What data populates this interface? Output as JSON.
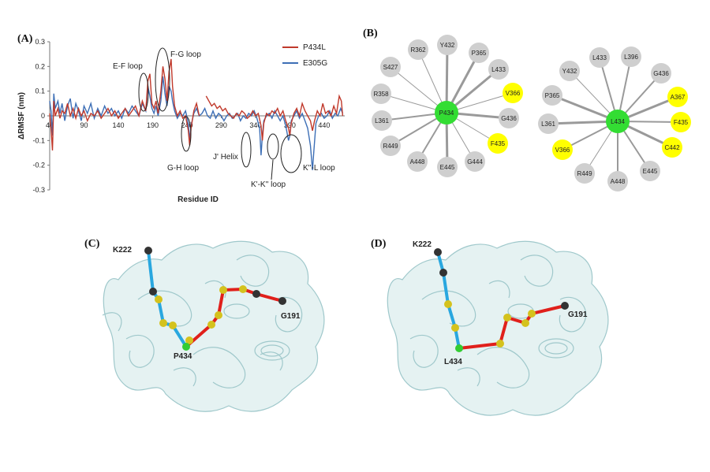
{
  "panels": {
    "a": "(A)",
    "b": "(B)",
    "c": "(C)",
    "d": "(D)"
  },
  "chart_data": {
    "type": "line",
    "title": "",
    "xlabel": "Residue ID",
    "ylabel": "ΔRMSF (nm)",
    "xlim": [
      40,
      470
    ],
    "ylim": [
      -0.3,
      0.3
    ],
    "xticks": [
      40,
      90,
      140,
      190,
      240,
      290,
      340,
      390,
      440
    ],
    "yticks": [
      -0.3,
      -0.2,
      -0.1,
      0,
      0.1,
      0.2,
      0.3
    ],
    "ytick_labels": [
      "-0.3",
      "-0.2",
      "-0.1",
      "0",
      "0.1",
      "0.2",
      "0.3"
    ],
    "legend_position": "top-right",
    "series": [
      {
        "name": "P434L",
        "color": "#c0392b",
        "points": [
          [
            40,
            0.01
          ],
          [
            42,
            -0.05
          ],
          [
            44,
            -0.14
          ],
          [
            46,
            0.06
          ],
          [
            48,
            0.0
          ],
          [
            52,
            0.03
          ],
          [
            55,
            -0.01
          ],
          [
            58,
            0.02
          ],
          [
            62,
            0.01
          ],
          [
            66,
            0.05
          ],
          [
            70,
            0.0
          ],
          [
            74,
            0.03
          ],
          [
            78,
            -0.01
          ],
          [
            82,
            0.03
          ],
          [
            86,
            0.0
          ],
          [
            90,
            0.02
          ],
          [
            95,
            -0.02
          ],
          [
            100,
            0.01
          ],
          [
            105,
            0.0
          ],
          [
            110,
            0.02
          ],
          [
            115,
            -0.01
          ],
          [
            120,
            0.01
          ],
          [
            125,
            0.03
          ],
          [
            130,
            0.0
          ],
          [
            135,
            0.02
          ],
          [
            140,
            -0.01
          ],
          [
            145,
            0.01
          ],
          [
            150,
            0.03
          ],
          [
            155,
            0.0
          ],
          [
            160,
            0.02
          ],
          [
            165,
            0.04
          ],
          [
            170,
            0.0
          ],
          [
            175,
            0.06
          ],
          [
            180,
            0.02
          ],
          [
            183,
            0.14
          ],
          [
            186,
            0.17
          ],
          [
            189,
            0.05
          ],
          [
            192,
            0.03
          ],
          [
            195,
            0.06
          ],
          [
            198,
            0.01
          ],
          [
            202,
            0.1
          ],
          [
            205,
            0.2
          ],
          [
            208,
            0.15
          ],
          [
            211,
            0.06
          ],
          [
            214,
            0.18
          ],
          [
            217,
            0.23
          ],
          [
            219,
            0.12
          ],
          [
            222,
            0.04
          ],
          [
            226,
            0.0
          ],
          [
            230,
            0.02
          ],
          [
            234,
            -0.01
          ],
          [
            238,
            0.0
          ],
          [
            242,
            -0.06
          ],
          [
            244,
            -0.12
          ],
          [
            246,
            -0.05
          ],
          [
            250,
            0.02
          ],
          [
            254,
            0.05
          ],
          [
            258,
            0.0
          ]
        ]
      },
      {
        "name": "P434L",
        "color": "#c0392b",
        "points": [
          [
            268,
            0.08
          ],
          [
            272,
            0.06
          ],
          [
            276,
            0.04
          ],
          [
            280,
            0.05
          ],
          [
            284,
            0.03
          ],
          [
            288,
            0.04
          ],
          [
            292,
            0.02
          ],
          [
            296,
            0.03
          ],
          [
            300,
            0.01
          ],
          [
            304,
            0.0
          ],
          [
            308,
            -0.01
          ],
          [
            312,
            0.01
          ],
          [
            316,
            0.0
          ],
          [
            320,
            0.02
          ],
          [
            324,
            0.01
          ],
          [
            328,
            -0.01
          ],
          [
            332,
            0.0
          ],
          [
            336,
            0.02
          ],
          [
            340,
            0.0
          ],
          [
            344,
            0.01
          ],
          [
            348,
            -0.04
          ],
          [
            350,
            -0.1
          ],
          [
            352,
            -0.03
          ],
          [
            356,
            0.01
          ],
          [
            360,
            0.0
          ],
          [
            364,
            0.02
          ],
          [
            368,
            0.01
          ],
          [
            372,
            0.03
          ],
          [
            376,
            0.0
          ],
          [
            380,
            0.02
          ],
          [
            384,
            -0.02
          ],
          [
            388,
            -0.05
          ],
          [
            390,
            -0.08
          ],
          [
            392,
            -0.03
          ],
          [
            396,
            0.01
          ],
          [
            400,
            0.03
          ],
          [
            404,
            0.0
          ],
          [
            408,
            0.05
          ],
          [
            412,
            0.02
          ],
          [
            416,
            0.0
          ],
          [
            420,
            -0.02
          ],
          [
            423,
            -0.06
          ],
          [
            426,
            -0.02
          ],
          [
            430,
            0.02
          ],
          [
            434,
            0.0
          ],
          [
            438,
            0.05
          ],
          [
            442,
            0.01
          ],
          [
            446,
            0.02
          ],
          [
            450,
            0.0
          ],
          [
            454,
            0.04
          ],
          [
            458,
            0.01
          ],
          [
            462,
            0.08
          ],
          [
            465,
            0.06
          ],
          [
            467,
            0.0
          ]
        ]
      },
      {
        "name": "E305G",
        "color": "#3d6fb6",
        "points": [
          [
            40,
            0.06
          ],
          [
            42,
            0.02
          ],
          [
            44,
            -0.08
          ],
          [
            46,
            0.09
          ],
          [
            48,
            0.03
          ],
          [
            52,
            0.06
          ],
          [
            55,
            0.01
          ],
          [
            58,
            0.05
          ],
          [
            62,
            -0.02
          ],
          [
            66,
            0.04
          ],
          [
            70,
            0.07
          ],
          [
            74,
            -0.01
          ],
          [
            78,
            0.05
          ],
          [
            82,
            0.02
          ],
          [
            86,
            -0.02
          ],
          [
            90,
            0.04
          ],
          [
            95,
            0.01
          ],
          [
            100,
            0.05
          ],
          [
            105,
            -0.01
          ],
          [
            110,
            0.03
          ],
          [
            115,
            0.0
          ],
          [
            120,
            0.04
          ],
          [
            125,
            0.01
          ],
          [
            130,
            0.03
          ],
          [
            135,
            0.0
          ],
          [
            140,
            0.02
          ],
          [
            145,
            -0.01
          ],
          [
            150,
            0.03
          ],
          [
            155,
            0.01
          ],
          [
            160,
            0.04
          ],
          [
            165,
            0.02
          ],
          [
            170,
            0.0
          ],
          [
            175,
            0.05
          ],
          [
            180,
            0.02
          ],
          [
            183,
            0.12
          ],
          [
            186,
            0.08
          ],
          [
            189,
            0.03
          ],
          [
            192,
            0.01
          ],
          [
            195,
            0.04
          ],
          [
            198,
            0.0
          ],
          [
            202,
            0.06
          ],
          [
            205,
            0.16
          ],
          [
            208,
            0.09
          ],
          [
            211,
            0.04
          ],
          [
            214,
            0.12
          ],
          [
            217,
            0.1
          ],
          [
            219,
            0.06
          ],
          [
            222,
            0.02
          ],
          [
            226,
            -0.01
          ],
          [
            230,
            0.01
          ],
          [
            234,
            0.0
          ],
          [
            238,
            0.02
          ],
          [
            242,
            -0.03
          ],
          [
            244,
            -0.1
          ],
          [
            246,
            -0.04
          ],
          [
            250,
            0.01
          ],
          [
            254,
            0.03
          ],
          [
            258,
            0.0
          ],
          [
            262,
            0.01
          ],
          [
            266,
            0.03
          ],
          [
            270,
            0.0
          ],
          [
            274,
            -0.01
          ],
          [
            278,
            0.02
          ],
          [
            282,
            -0.01
          ],
          [
            286,
            0.01
          ],
          [
            290,
            0.0
          ],
          [
            294,
            -0.02
          ],
          [
            298,
            0.0
          ],
          [
            302,
            0.01
          ],
          [
            306,
            -0.01
          ],
          [
            310,
            0.0
          ],
          [
            314,
            0.01
          ],
          [
            318,
            -0.02
          ],
          [
            322,
            0.0
          ],
          [
            326,
            -0.01
          ],
          [
            330,
            0.01
          ],
          [
            334,
            0.0
          ],
          [
            338,
            0.02
          ],
          [
            342,
            -0.01
          ],
          [
            346,
            -0.05
          ],
          [
            348,
            -0.16
          ],
          [
            350,
            -0.08
          ],
          [
            352,
            -0.02
          ],
          [
            356,
            0.0
          ],
          [
            360,
            0.01
          ],
          [
            364,
            -0.01
          ],
          [
            368,
            0.02
          ],
          [
            372,
            0.0
          ],
          [
            376,
            -0.02
          ],
          [
            380,
            0.0
          ],
          [
            384,
            -0.04
          ],
          [
            388,
            -0.1
          ],
          [
            390,
            -0.08
          ],
          [
            392,
            -0.02
          ],
          [
            396,
            0.0
          ],
          [
            400,
            0.02
          ],
          [
            404,
            -0.01
          ],
          [
            408,
            0.01
          ],
          [
            412,
            -0.02
          ],
          [
            416,
            -0.05
          ],
          [
            420,
            -0.12
          ],
          [
            423,
            -0.22
          ],
          [
            425,
            -0.14
          ],
          [
            428,
            -0.03
          ],
          [
            432,
            0.0
          ],
          [
            436,
            0.01
          ],
          [
            440,
            -0.01
          ],
          [
            444,
            0.0
          ],
          [
            448,
            0.02
          ],
          [
            452,
            -0.01
          ],
          [
            456,
            0.01
          ],
          [
            460,
            0.0
          ],
          [
            464,
            0.03
          ],
          [
            467,
            0.01
          ]
        ]
      }
    ],
    "annotations": [
      "E-F loop",
      "F-G loop",
      "G-H loop",
      "J' Helix",
      "K'-K'' loop",
      "K''-L loop"
    ]
  },
  "networks": [
    {
      "center": "P434",
      "neighbors": [
        "Y432",
        "P365",
        "L433",
        "V366",
        "G436",
        "F435",
        "G444",
        "E445",
        "A448",
        "R449",
        "L361",
        "R358",
        "S427",
        "R362"
      ],
      "highlight": [
        "V366",
        "F435"
      ]
    },
    {
      "center": "L434",
      "neighbors": [
        "L396",
        "G436",
        "A367",
        "F435",
        "C442",
        "E445",
        "A448",
        "R449",
        "V366",
        "L361",
        "P365",
        "Y432",
        "L433"
      ],
      "highlight": [
        "A367",
        "F435",
        "C442",
        "V366"
      ]
    }
  ],
  "structures": {
    "c": {
      "labels": [
        "K222",
        "P434",
        "G191"
      ]
    },
    "d": {
      "labels": [
        "K222",
        "L434",
        "G191"
      ]
    }
  },
  "colors": {
    "node_gray": "#cfcfcf",
    "node_yellow": "#ffff00",
    "node_green": "#33dd33",
    "ribbon": "#b9dddf",
    "path_blue": "#29a7df",
    "path_red": "#e0201b"
  }
}
